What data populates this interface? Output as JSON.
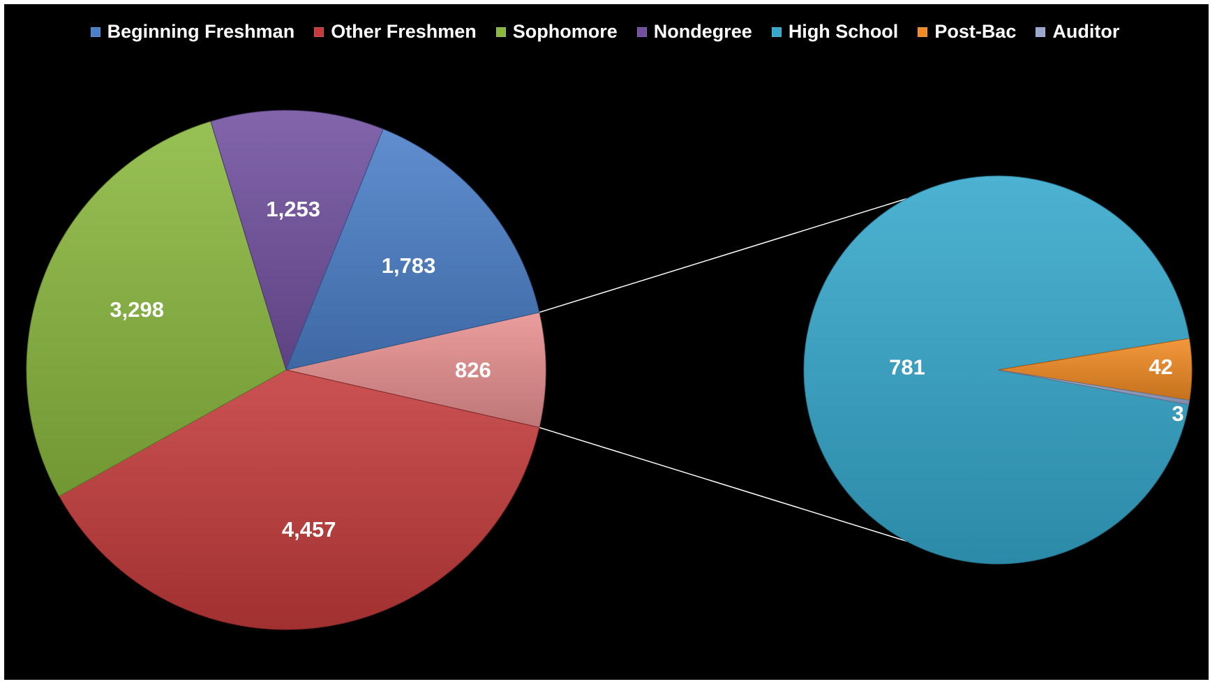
{
  "chart_data": {
    "type": "pie",
    "subtype": "pie-of-pie",
    "legend_position": "top",
    "series": [
      {
        "name": "Beginning Freshman",
        "value": 1783,
        "label": "1,783",
        "color": "#4a7fc8"
      },
      {
        "name": "Other Freshmen",
        "value": 4457,
        "label": "4,457",
        "color": "#c43a3a"
      },
      {
        "name": "Sophomore",
        "value": 3298,
        "label": "3,298",
        "color": "#8ab83e"
      },
      {
        "name": "Nondegree",
        "value": 1253,
        "label": "1,253",
        "color": "#7150a0"
      },
      {
        "name": "High School",
        "value": 781,
        "label": "781",
        "color": "#35a8cc"
      },
      {
        "name": "Post-Bac",
        "value": 42,
        "label": "42",
        "color": "#f08a22"
      },
      {
        "name": "Auditor",
        "value": 3,
        "label": "3",
        "color": "#9aa8cc"
      }
    ],
    "main_pie": [
      "Other Freshmen",
      "Sophomore",
      "Nondegree",
      "Beginning Freshman"
    ],
    "other_slice": {
      "value": 826,
      "label": "826",
      "color": "#e89090"
    },
    "secondary_pie": [
      "High School",
      "Post-Bac",
      "Auditor"
    ]
  }
}
